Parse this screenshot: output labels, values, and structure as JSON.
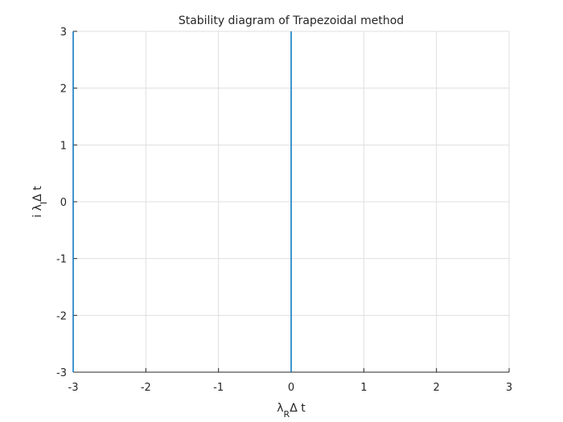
{
  "chart_data": {
    "type": "line",
    "title": "Stability diagram of Trapezoidal method",
    "xlabel": [
      "λ",
      "R",
      "Δ t"
    ],
    "ylabel": [
      "i λ",
      "I",
      "Δ t"
    ],
    "series": [
      {
        "color": "#0072bd",
        "x": [
          0,
          0
        ],
        "values": [
          -3,
          3
        ]
      },
      {
        "color": "#0072bd",
        "x": [
          -3,
          -3
        ],
        "values": [
          -3,
          3
        ]
      }
    ],
    "xlim": [
      -3,
      3
    ],
    "ylim": [
      -3,
      3
    ],
    "xticks": [
      -3,
      -2,
      -1,
      0,
      1,
      2,
      3
    ],
    "yticks": [
      -3,
      -2,
      -1,
      0,
      1,
      2,
      3
    ],
    "grid": true
  }
}
